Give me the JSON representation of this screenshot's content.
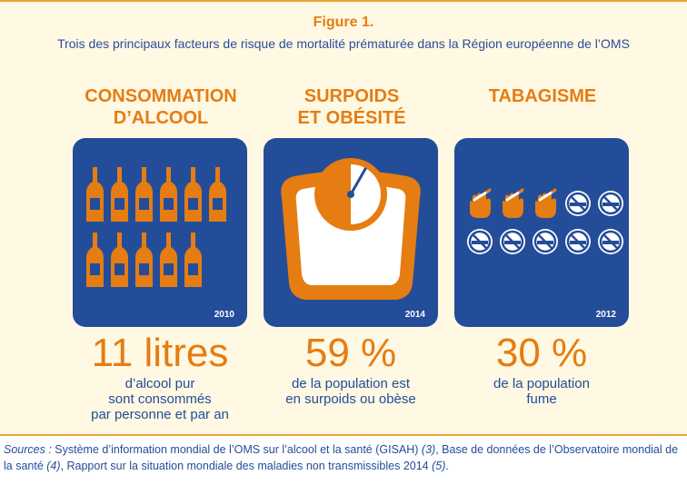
{
  "figure": {
    "label": "Figure 1.",
    "caption": "Trois des principaux facteurs de risque de mortalité prématurée dans la Région européenne de l’OMS"
  },
  "columns": [
    {
      "title": "CONSOMMATION\nD’ALCOOL",
      "year": "2010",
      "value": "11 litres",
      "description": "d’alcool pur\nsont consommés\npar personne et par an",
      "icon": "alcohol-bottle-icon",
      "bottle_count": 11
    },
    {
      "title": "SURPOIDS\nET OBÉSITÉ",
      "year": "2014",
      "value": "59 %",
      "description": "de la population est\nen surpoids ou obèse",
      "icon": "weighing-scale-icon"
    },
    {
      "title": "TABAGISME",
      "year": "2012",
      "value": "30 %",
      "description": "de la population\nfume",
      "icon": "smoking-hand-icon",
      "smoker_count": 3,
      "non_smoker_count": 7
    }
  ],
  "sources": {
    "label": "Sources :",
    "text_1": " Système d’information mondial de l’OMS sur l’alcool et la santé (GISAH) ",
    "ref_1": "(3)",
    "text_2": ", Base de données de l’Observatoire mondial de la santé ",
    "ref_2": "(4)",
    "text_3": ", Rapport sur la situation mondiale des maladies non transmissibles 2014 ",
    "ref_3": "(5)",
    "text_4": "."
  },
  "colors": {
    "orange": "#e57d12",
    "blue": "#244d99",
    "background": "#fff8e3"
  }
}
